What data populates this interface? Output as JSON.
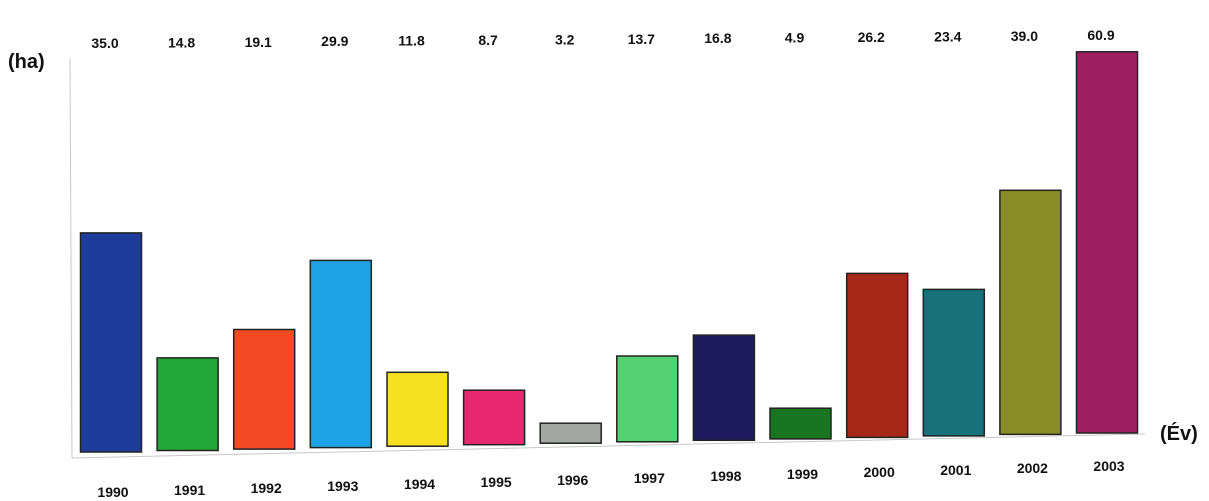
{
  "chart_data": {
    "type": "bar",
    "categories": [
      "1990",
      "1991",
      "1992",
      "1993",
      "1994",
      "1995",
      "1996",
      "1997",
      "1998",
      "1999",
      "2000",
      "2001",
      "2002",
      "2003"
    ],
    "values": [
      35.0,
      14.8,
      19.1,
      29.9,
      11.8,
      8.7,
      3.2,
      13.7,
      16.8,
      4.9,
      26.2,
      23.4,
      39.0,
      60.9
    ],
    "value_labels": [
      "35.0",
      "14.8",
      "19.1",
      "29.9",
      "11.8",
      "8.7",
      "3.2",
      "13.7",
      "16.8",
      "4.9",
      "26.2",
      "23.4",
      "39.0",
      "60.9"
    ],
    "colors": [
      "#1e3c9a",
      "#22a836",
      "#f44a24",
      "#1da3e6",
      "#f7e020",
      "#e8286f",
      "#a3a8a2",
      "#55d070",
      "#1b1b5e",
      "#17761f",
      "#a52818",
      "#16717a",
      "#8a8c26",
      "#9e1e64"
    ],
    "ylabel": "(ha)",
    "xlabel": "(Év)",
    "ylim": [
      0,
      62
    ],
    "grid": false,
    "legend": "none"
  }
}
